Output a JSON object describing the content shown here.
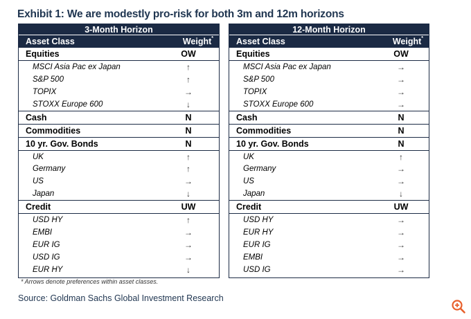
{
  "title": "Exhibit 1: We are modestly pro-risk for both 3m and 12m horizons",
  "panels": {
    "left": {
      "horizon": "3-Month Horizon",
      "col_asset": "Asset Class",
      "col_weight": "Weight",
      "col_weight_mark": "*",
      "rows": [
        {
          "type": "cat",
          "name": "Equities",
          "value": "OW"
        },
        {
          "type": "sub",
          "name": "MSCI Asia Pac ex Japan",
          "value": "↑"
        },
        {
          "type": "sub",
          "name": "S&P 500",
          "value": "↑"
        },
        {
          "type": "sub",
          "name": "TOPIX",
          "value": "→"
        },
        {
          "type": "sub",
          "name": "STOXX Europe 600",
          "value": "↓"
        },
        {
          "type": "cat",
          "name": "Cash",
          "value": "N"
        },
        {
          "type": "cat",
          "name": "Commodities",
          "value": "N"
        },
        {
          "type": "cat",
          "name": "10 yr. Gov. Bonds",
          "value": "N"
        },
        {
          "type": "sub",
          "name": "UK",
          "value": "↑"
        },
        {
          "type": "sub",
          "name": "Germany",
          "value": "↑"
        },
        {
          "type": "sub",
          "name": "US",
          "value": "→"
        },
        {
          "type": "sub",
          "name": "Japan",
          "value": "↓"
        },
        {
          "type": "cat",
          "name": "Credit",
          "value": "UW"
        },
        {
          "type": "sub",
          "name": "USD HY",
          "value": "↑"
        },
        {
          "type": "sub",
          "name": "EMBI",
          "value": "→"
        },
        {
          "type": "sub",
          "name": "EUR IG",
          "value": "→"
        },
        {
          "type": "sub",
          "name": "USD IG",
          "value": "→"
        },
        {
          "type": "sub",
          "name": "EUR HY",
          "value": "↓"
        }
      ]
    },
    "right": {
      "horizon": "12-Month Horizon",
      "col_asset": "Asset Class",
      "col_weight": "Weight",
      "col_weight_mark": "*",
      "rows": [
        {
          "type": "cat",
          "name": "Equities",
          "value": "OW"
        },
        {
          "type": "sub",
          "name": "MSCI Asia Pac ex Japan",
          "value": "→"
        },
        {
          "type": "sub",
          "name": "S&P 500",
          "value": "→"
        },
        {
          "type": "sub",
          "name": "TOPIX",
          "value": "→"
        },
        {
          "type": "sub",
          "name": "STOXX Europe 600",
          "value": "→"
        },
        {
          "type": "cat",
          "name": "Cash",
          "value": "N"
        },
        {
          "type": "cat",
          "name": "Commodities",
          "value": "N"
        },
        {
          "type": "cat",
          "name": "10 yr. Gov. Bonds",
          "value": "N"
        },
        {
          "type": "sub",
          "name": "UK",
          "value": "↑"
        },
        {
          "type": "sub",
          "name": "Germany",
          "value": "→"
        },
        {
          "type": "sub",
          "name": "US",
          "value": "→"
        },
        {
          "type": "sub",
          "name": "Japan",
          "value": "↓"
        },
        {
          "type": "cat",
          "name": "Credit",
          "value": "UW"
        },
        {
          "type": "sub",
          "name": "USD HY",
          "value": "→"
        },
        {
          "type": "sub",
          "name": "EUR HY",
          "value": "→"
        },
        {
          "type": "sub",
          "name": "EUR IG",
          "value": "→"
        },
        {
          "type": "sub",
          "name": "EMBI",
          "value": "→"
        },
        {
          "type": "sub",
          "name": "USD IG",
          "value": "→"
        }
      ]
    }
  },
  "note": "* Arrows denote preferences within asset classes.",
  "source": "Source: Goldman Sachs Global Investment Research",
  "zoom_icon": "zoom-in-icon",
  "colors": {
    "header_bg": "#1b2a44",
    "title": "#1f3550",
    "zoom": "#e8602c"
  }
}
